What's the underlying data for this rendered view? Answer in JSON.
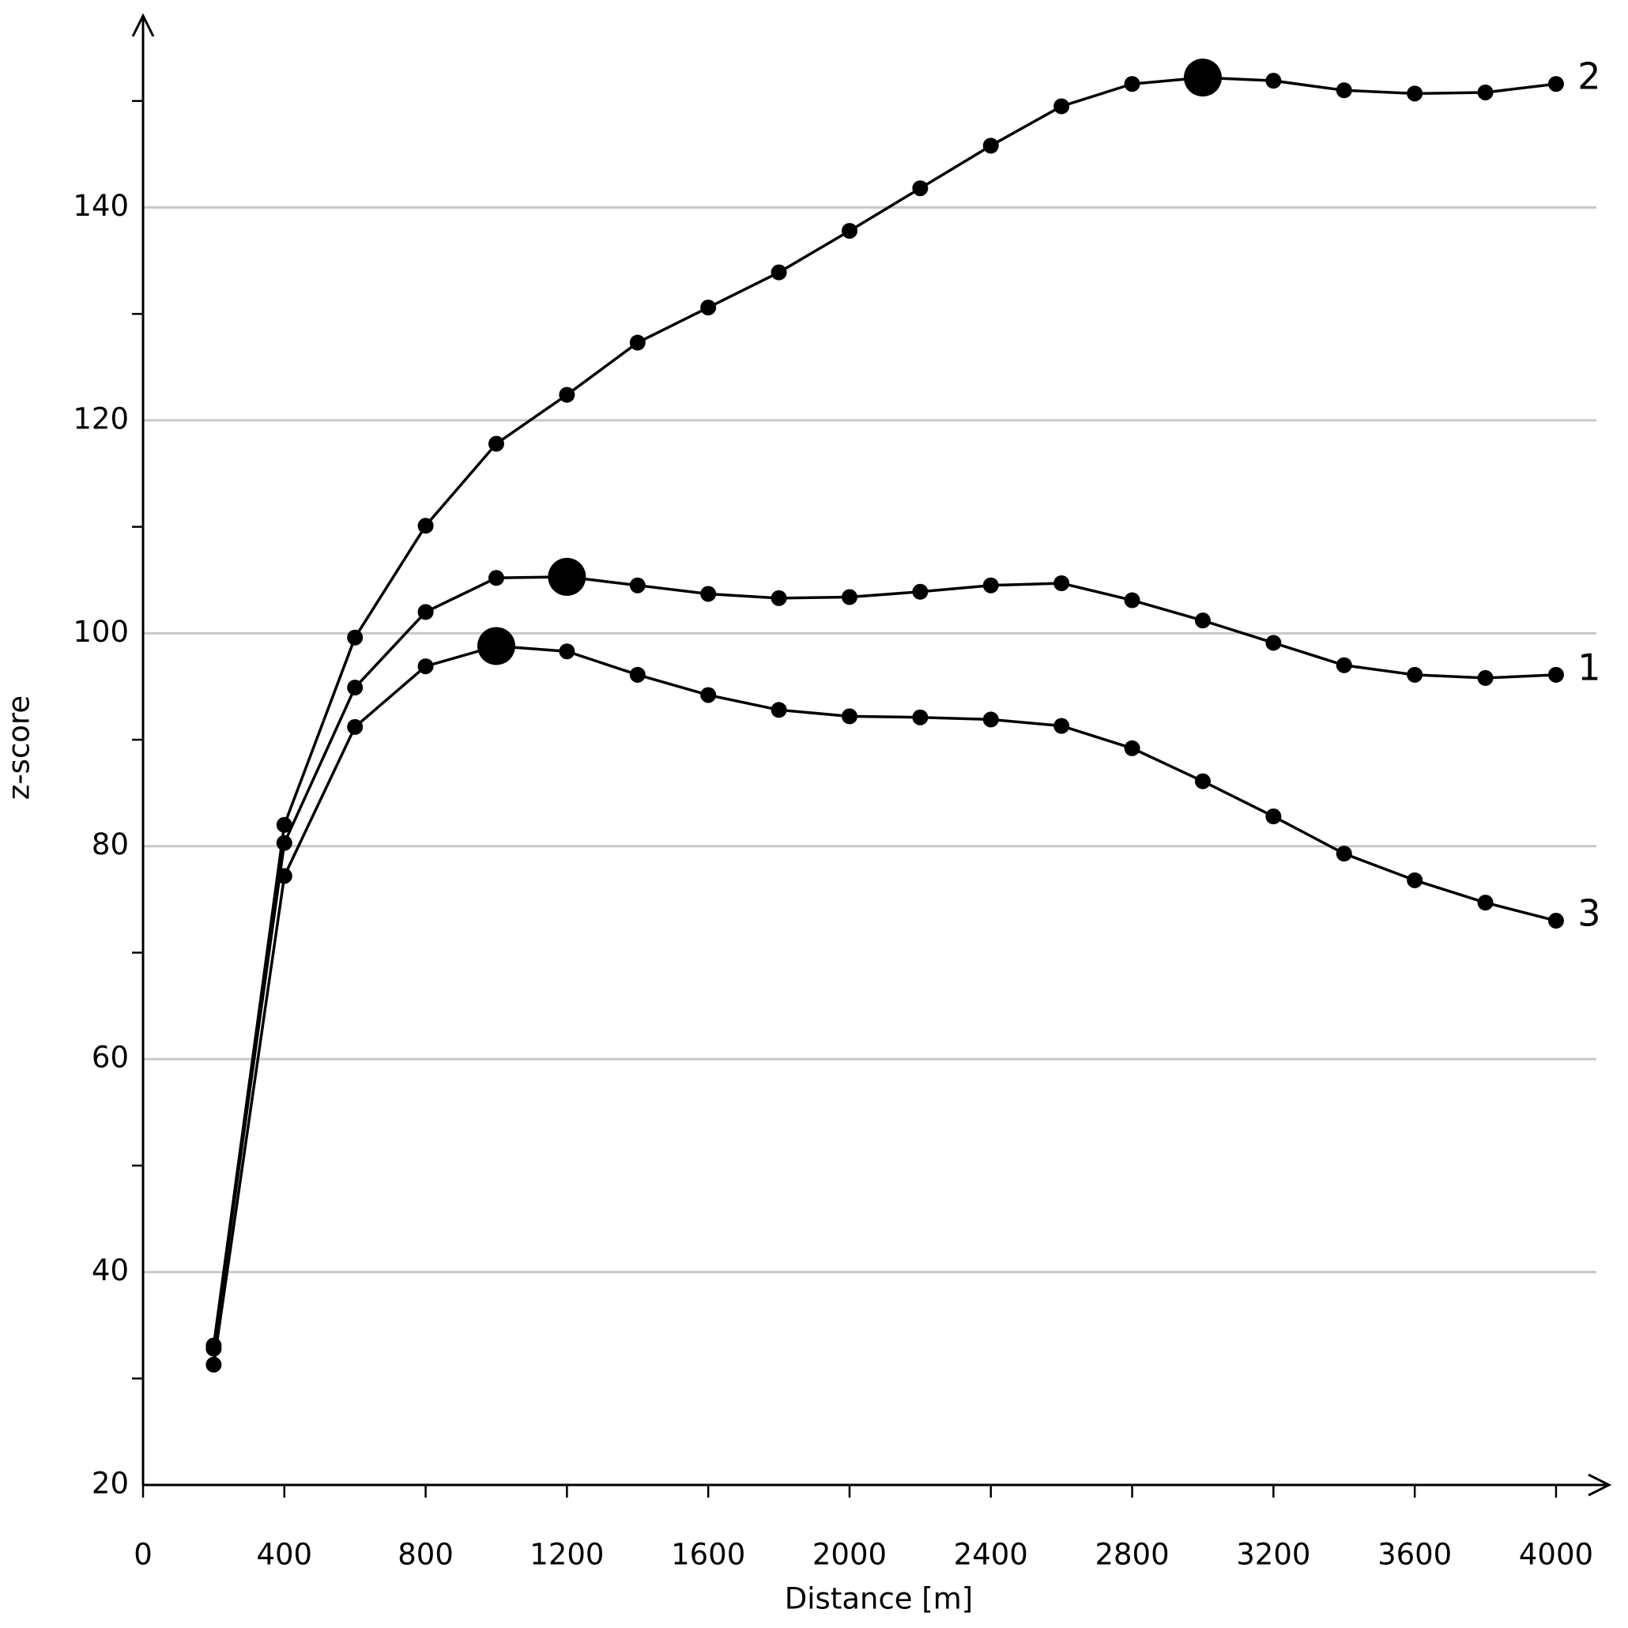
{
  "chart_data": {
    "type": "line",
    "x_label": "Distance [m]",
    "y_label": "z-score",
    "x": [
      200,
      400,
      600,
      800,
      1000,
      1200,
      1400,
      1600,
      1800,
      2000,
      2200,
      2400,
      2600,
      2800,
      3000,
      3200,
      3400,
      3600,
      3800,
      4000
    ],
    "series": [
      {
        "name": "1",
        "color": "#000000",
        "values": [
          32.8,
          80.3,
          94.9,
          102.0,
          105.2,
          105.3,
          104.5,
          103.7,
          103.3,
          103.4,
          103.9,
          104.5,
          104.7,
          103.1,
          101.2,
          99.1,
          97.0,
          96.1,
          95.8,
          96.1
        ]
      },
      {
        "name": "2",
        "color": "#000000",
        "values": [
          33.1,
          82.0,
          99.6,
          110.1,
          117.8,
          122.4,
          127.3,
          130.6,
          133.9,
          137.8,
          141.8,
          145.8,
          149.5,
          151.6,
          152.2,
          151.9,
          151.0,
          150.7,
          150.8,
          151.6
        ]
      },
      {
        "name": "3",
        "color": "#000000",
        "values": [
          31.3,
          77.2,
          91.2,
          96.9,
          98.8,
          98.3,
          96.1,
          94.2,
          92.8,
          92.2,
          92.1,
          91.9,
          91.3,
          89.2,
          86.1,
          82.8,
          79.3,
          76.8,
          74.7,
          73.0
        ]
      }
    ],
    "xlim": [
      0,
      4150
    ],
    "ylim": [
      20,
      158
    ],
    "xticks": [
      0,
      400,
      800,
      1200,
      1600,
      2000,
      2400,
      2800,
      3200,
      3600,
      4000
    ],
    "yticks": [
      20,
      40,
      60,
      80,
      100,
      120,
      140
    ],
    "yminorticks": [
      30,
      50,
      70,
      90,
      110,
      130,
      150
    ],
    "grid": true,
    "grid_color": "#c8c8c8"
  }
}
